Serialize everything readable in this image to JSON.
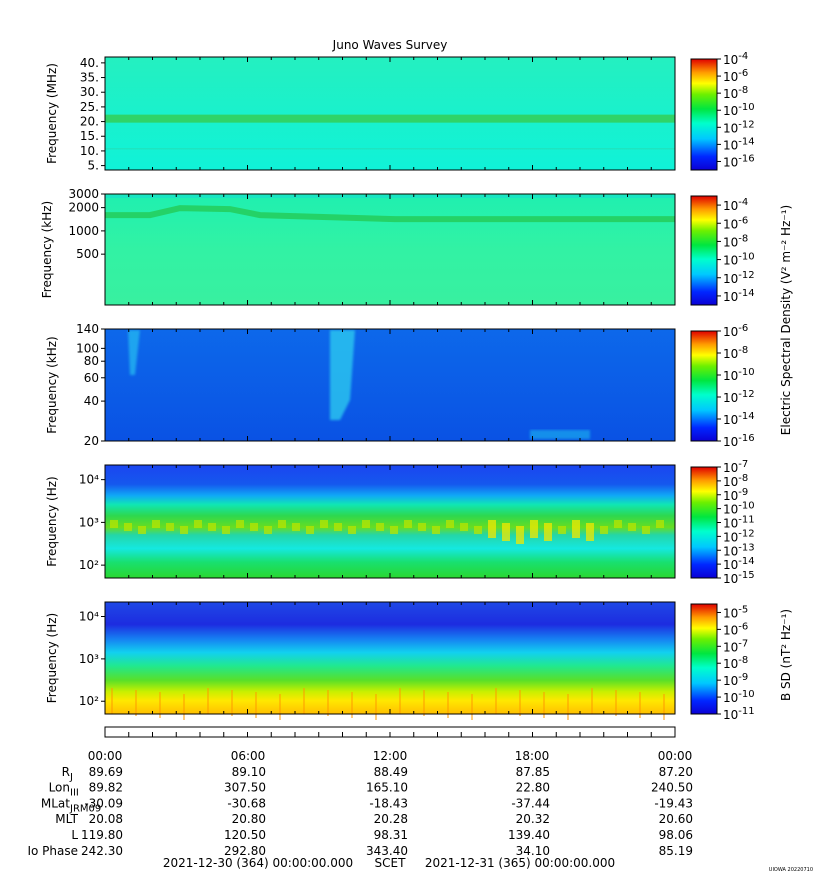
{
  "title": "Juno Waves Survey",
  "watermark": "UIOWA 20220710",
  "colors": {
    "electric_bg": "#2ff0a6",
    "low_bg": "#0a63e8",
    "accent_band": "#39d844"
  },
  "panels": [
    {
      "id": "p1",
      "ylabel": "Frequency (MHz)",
      "yticks": [
        "40.",
        "35.",
        "30.",
        "25.",
        "20.",
        "15.",
        "10.",
        "5."
      ],
      "ytick_values": [
        40,
        35,
        30,
        25,
        20,
        15,
        10,
        5
      ],
      "ylim": [
        3.5,
        42
      ],
      "scale": "linear",
      "colorbar": {
        "exponents": [
          "-4",
          "-6",
          "-8",
          "-10",
          "-12",
          "-14",
          "-16"
        ],
        "min_exp": -17,
        "max_exp": -4
      },
      "background": "#1ef2c6",
      "features": [
        {
          "type": "band",
          "y": 21.0,
          "value_exp": -11.3
        }
      ]
    },
    {
      "id": "p2",
      "ylabel": "Frequency (kHz)",
      "yticks": [
        "3000",
        "2000",
        "1000",
        "500"
      ],
      "ytick_values": [
        3000,
        2000,
        1000,
        500
      ],
      "ylim": [
        110,
        3000
      ],
      "scale": "log",
      "colorbar": {
        "exponents": [
          "-4",
          "-6",
          "-8",
          "-10",
          "-12",
          "-14"
        ],
        "min_exp": -15,
        "max_exp": -3
      },
      "background": "#2ef5a8",
      "features": [
        {
          "type": "band",
          "y": 1600,
          "value_exp": -10.5
        }
      ]
    },
    {
      "id": "p3",
      "ylabel": "Frequency (kHz)",
      "yticks": [
        "140",
        "100",
        "80",
        "60",
        "40",
        "20"
      ],
      "ytick_values": [
        140,
        100,
        80,
        60,
        40,
        20
      ],
      "ylim": [
        20,
        140
      ],
      "scale": "log",
      "colorbar": {
        "exponents": [
          "-6",
          "-8",
          "-10",
          "-12",
          "-14",
          "-16"
        ],
        "min_exp": -16,
        "max_exp": -6
      },
      "background": "#0b64e8",
      "features": []
    },
    {
      "id": "p4",
      "ylabel": "Frequency (Hz)",
      "yticks": [
        "10⁴",
        "10³",
        "10²"
      ],
      "ytick_values": [
        10000,
        1000,
        100
      ],
      "ylim": [
        50,
        22000
      ],
      "scale": "log",
      "colorbar": {
        "exponents": [
          "-7",
          "-8",
          "-9",
          "-10",
          "-11",
          "-12",
          "-13",
          "-14",
          "-15"
        ],
        "min_exp": -15,
        "max_exp": -7
      },
      "background": "#1670e6",
      "features": []
    },
    {
      "id": "p5",
      "ylabel": "Frequency (Hz)",
      "yticks": [
        "10⁴",
        "10³",
        "10²"
      ],
      "ytick_values": [
        10000,
        1000,
        100
      ],
      "ylim": [
        50,
        22000
      ],
      "scale": "log",
      "colorbar": {
        "exponents": [
          "-5",
          "-6",
          "-7",
          "-8",
          "-9",
          "-10",
          "-11"
        ],
        "min_exp": -11,
        "max_exp": -4.5
      },
      "background": "#1e40e8",
      "features": []
    }
  ],
  "colorbar_labels": {
    "electric": "Electric Spectral Density (V² m⁻² Hz⁻¹)",
    "magnetic": "B SD (nT² Hz⁻¹)"
  },
  "cb_base": "10",
  "ephemeris": {
    "times": [
      "00:00",
      "06:00",
      "12:00",
      "18:00",
      "00:00"
    ],
    "rows": [
      {
        "label": "R",
        "sub": "J",
        "values": [
          "89.69",
          "89.10",
          "88.49",
          "87.85",
          "87.20"
        ]
      },
      {
        "label": "Lon",
        "sub": "III",
        "values": [
          "89.82",
          "307.50",
          "165.10",
          "22.80",
          "240.50"
        ]
      },
      {
        "label": "MLat",
        "sub": "JRM09",
        "values": [
          "-30.09",
          "-30.68",
          "-18.43",
          "-37.44",
          "-19.43"
        ]
      },
      {
        "label": "MLT",
        "sub": "",
        "values": [
          "20.08",
          "20.80",
          "20.28",
          "20.32",
          "20.60"
        ]
      },
      {
        "label": "L",
        "sub": "",
        "values": [
          "119.80",
          "120.50",
          "98.31",
          "139.40",
          "98.06"
        ]
      },
      {
        "label": "Io Phase",
        "sub": "",
        "values": [
          "242.30",
          "292.80",
          "343.40",
          "34.10",
          "85.19"
        ]
      }
    ]
  },
  "footer": {
    "start": "2021-12-30 (364) 00:00:00.000",
    "axis": "SCET",
    "end": "2021-12-31 (365) 00:00:00.000"
  },
  "chart_data": [
    {
      "type": "heatmap",
      "title": "Juno Waves Survey",
      "ylabel": "Frequency (MHz)",
      "ylim": [
        3.5,
        42
      ],
      "x": [
        "00:00",
        "06:00",
        "12:00",
        "18:00",
        "00:00"
      ],
      "features": [
        {
          "name": "band",
          "y": 21,
          "log10_value": -11.3
        }
      ]
    },
    {
      "type": "heatmap",
      "ylabel": "Frequency (kHz)",
      "ylim": [
        110,
        3000
      ],
      "scale": "log",
      "features": [
        {
          "name": "band",
          "y": 1600,
          "log10_value": -10.5
        }
      ]
    },
    {
      "type": "heatmap",
      "ylabel": "Frequency (kHz)",
      "ylim": [
        20,
        140
      ],
      "scale": "log",
      "features": [
        {
          "name": "burst",
          "x": "10:00",
          "y_range": [
            40,
            140
          ],
          "log10_value": -12.5
        }
      ]
    },
    {
      "type": "heatmap",
      "ylabel": "Frequency (Hz)",
      "ylim": [
        50,
        22000
      ],
      "scale": "log",
      "features": [
        {
          "name": "cutoff",
          "y": 2600
        },
        {
          "name": "emission",
          "y_range": [
            400,
            1000
          ],
          "log10_value": -9
        }
      ]
    },
    {
      "type": "heatmap",
      "ylabel": "Frequency (Hz)",
      "ylim": [
        50,
        22000
      ],
      "scale": "log",
      "features": [
        {
          "name": "low-frequency emission",
          "y_range": [
            50,
            150
          ],
          "log10_value": -5.5
        }
      ]
    }
  ]
}
